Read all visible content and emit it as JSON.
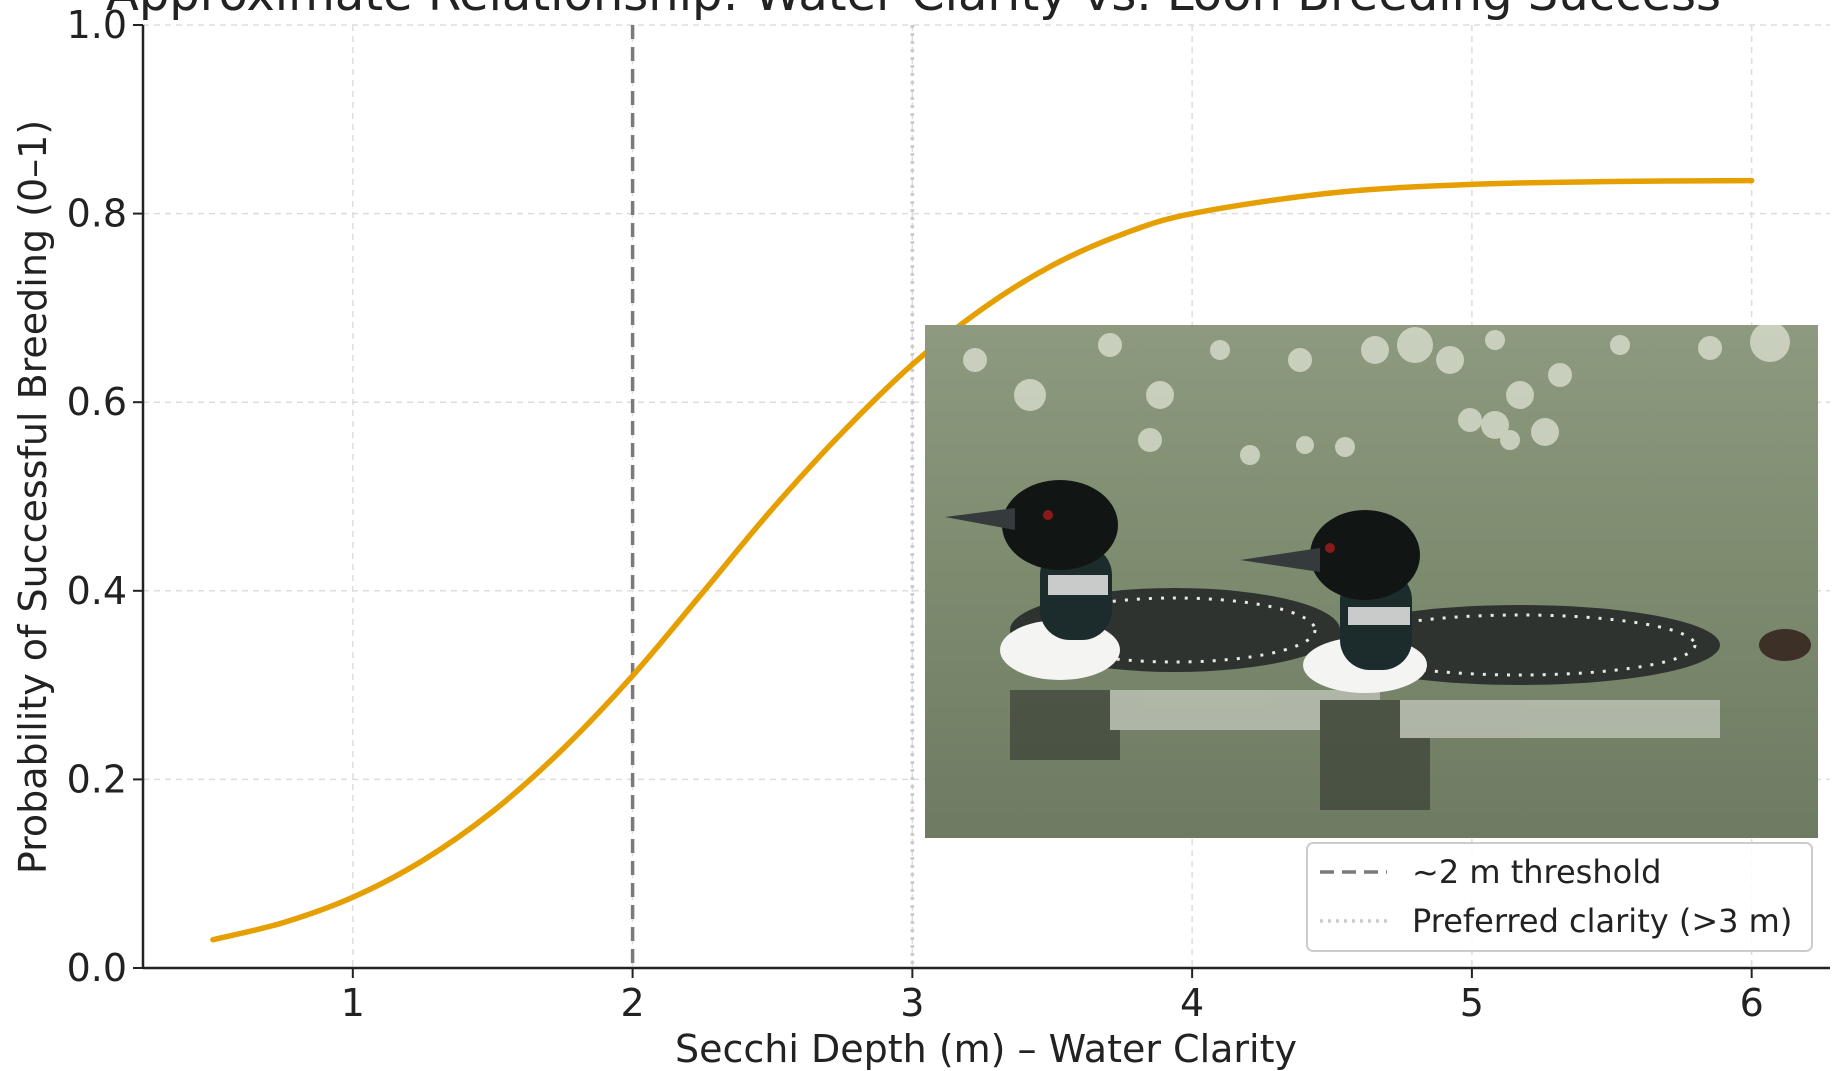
{
  "chart_data": {
    "type": "line",
    "title": "Approximate Relationship: Water Clarity vs. Loon Breeding Success",
    "xlabel": "Secchi Depth (m) – Water Clarity",
    "ylabel": "Probability of Successful Breeding (0–1)",
    "xlim": [
      0.25,
      6.28
    ],
    "ylim": [
      0.0,
      1.0
    ],
    "xticks": [
      1,
      2,
      3,
      4,
      5,
      6
    ],
    "yticks": [
      0.0,
      0.2,
      0.4,
      0.6,
      0.8,
      1.0
    ],
    "ytick_labels": [
      "0.0",
      "0.2",
      "0.4",
      "0.6",
      "0.8",
      "1.0"
    ],
    "xtick_labels": [
      "1",
      "2",
      "3",
      "4",
      "5",
      "6"
    ],
    "grid": true,
    "series": [
      {
        "color": "#E69F00",
        "x": [
          0.5,
          0.75,
          1.0,
          1.25,
          1.5,
          1.75,
          2.0,
          2.25,
          2.5,
          2.75,
          3.0,
          3.25,
          3.5,
          3.75,
          4.0,
          4.5,
          5.0,
          5.5,
          6.0
        ],
        "y": [
          0.03,
          0.048,
          0.075,
          0.114,
          0.166,
          0.232,
          0.31,
          0.398,
          0.487,
          0.568,
          0.64,
          0.699,
          0.745,
          0.778,
          0.8,
          0.822,
          0.831,
          0.834,
          0.835
        ]
      }
    ],
    "vlines": [
      {
        "x": 2,
        "style": "dashed",
        "color": "#7a7a7a",
        "label": "~2 m threshold"
      },
      {
        "x": 3,
        "style": "dotted",
        "color": "#cccccc",
        "label": "Preferred clarity (>3 m)"
      }
    ],
    "legend_placement": "bottom-right",
    "inset_image": "common loons swimming on lake"
  }
}
